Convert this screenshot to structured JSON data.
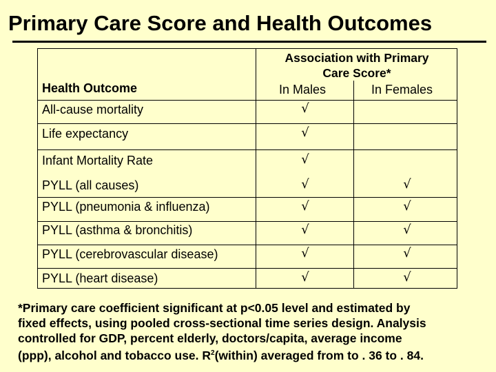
{
  "title": "Primary Care Score and Health Outcomes",
  "table": {
    "col_outcome": "Health Outcome",
    "assoc_line1": "Association with Primary",
    "assoc_line2": "Care Score*",
    "col_males": "In Males",
    "col_females": "In Females",
    "check_symbol": "√",
    "rows": [
      {
        "outcome": "All-cause mortality",
        "males": "√",
        "females": ""
      },
      {
        "outcome": "Life expectancy",
        "males": "√",
        "females": ""
      },
      {
        "outcome": "Infant Mortality Rate",
        "males": "√",
        "females": ""
      },
      {
        "outcome": "PYLL (all causes)",
        "males": "√",
        "females": "√"
      },
      {
        "outcome": "PYLL (pneumonia & influenza)",
        "males": "√",
        "females": "√"
      },
      {
        "outcome": "PYLL (asthma & bronchitis)",
        "males": "√",
        "females": "√"
      },
      {
        "outcome": "PYLL (cerebrovascular disease)",
        "males": "√",
        "females": "√"
      },
      {
        "outcome": "PYLL (heart disease)",
        "males": "√",
        "females": "√"
      }
    ]
  },
  "footnote": {
    "line1": "*Primary care coefficient significant at p<0.05 level and estimated by",
    "line2": "fixed effects, using pooled cross-sectional time series design.  Analysis",
    "line3": "controlled for GDP, percent elderly, doctors/capita, average income",
    "line4_a": "(ppp), alcohol and tobacco use.   R",
    "line4_sup": "2",
    "line4_b": "(within) averaged from to . 36 to . 84."
  }
}
